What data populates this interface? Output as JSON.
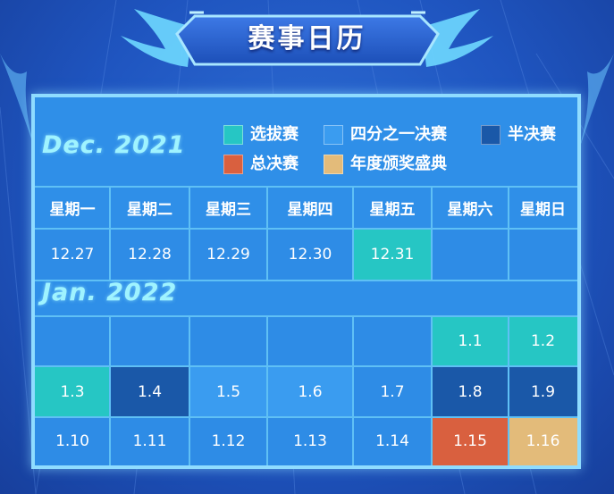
{
  "title": "赛事日历",
  "colors": {
    "选拔赛": "#26c6c4",
    "四分之一决赛": "#3a9cf0",
    "半决赛": "#1a58a8",
    "总决赛": "#d9603f",
    "年度颁奖盛典": "#e3bb7a"
  },
  "legend": [
    {
      "label": "选拔赛",
      "color": "#26c6c4"
    },
    {
      "label": "四分之一决赛",
      "color": "#3a9cf0"
    },
    {
      "label": "半决赛",
      "color": "#1a58a8"
    },
    {
      "label": "总决赛",
      "color": "#d9603f"
    },
    {
      "label": "年度颁奖盛典",
      "color": "#e3bb7a"
    }
  ],
  "weekdays": [
    "星期一",
    "星期二",
    "星期三",
    "星期四",
    "星期五",
    "星期六",
    "星期日"
  ],
  "months": [
    {
      "label": "Dec. 2021",
      "weeks": [
        [
          {
            "d": "12.27"
          },
          {
            "d": "12.28"
          },
          {
            "d": "12.29"
          },
          {
            "d": "12.30"
          },
          {
            "d": "12.31",
            "color": "#26c6c4"
          },
          {
            "d": ""
          },
          {
            "d": ""
          }
        ]
      ]
    },
    {
      "label": "Jan. 2022",
      "weeks": [
        [
          {
            "d": ""
          },
          {
            "d": ""
          },
          {
            "d": ""
          },
          {
            "d": ""
          },
          {
            "d": ""
          },
          {
            "d": "1.1",
            "color": "#26c6c4"
          },
          {
            "d": "1.2",
            "color": "#26c6c4"
          }
        ],
        [
          {
            "d": "1.3",
            "color": "#26c6c4"
          },
          {
            "d": "1.4",
            "color": "#1a58a8"
          },
          {
            "d": "1.5",
            "color": "#3a9cf0"
          },
          {
            "d": "1.6",
            "color": "#3a9cf0"
          },
          {
            "d": "1.7"
          },
          {
            "d": "1.8",
            "color": "#1a58a8"
          },
          {
            "d": "1.9",
            "color": "#1a58a8"
          }
        ],
        [
          {
            "d": "1.10"
          },
          {
            "d": "1.11"
          },
          {
            "d": "1.12"
          },
          {
            "d": "1.13"
          },
          {
            "d": "1.14"
          },
          {
            "d": "1.15",
            "color": "#d9603f"
          },
          {
            "d": "1.16",
            "color": "#e3bb7a"
          }
        ]
      ]
    }
  ]
}
